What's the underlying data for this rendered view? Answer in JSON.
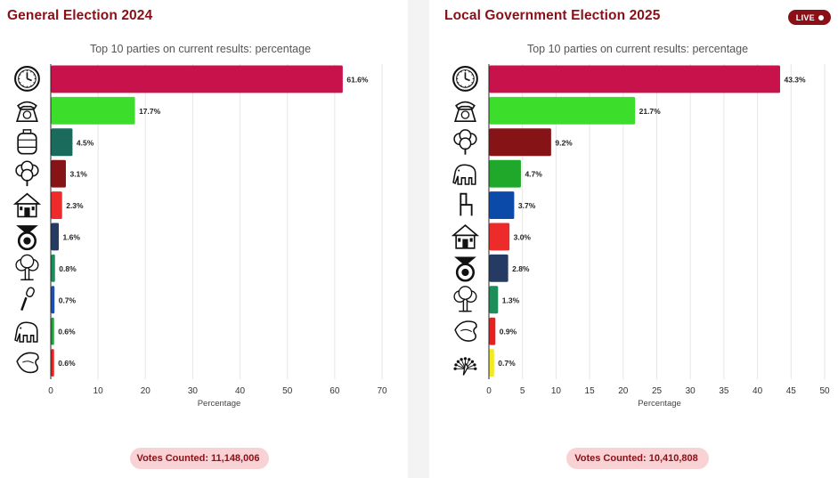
{
  "chart_data": [
    {
      "type": "bar",
      "orientation": "horizontal",
      "title": "General Election 2024",
      "subtitle": "Top 10 parties on current results: percentage",
      "xlabel": "Percentage",
      "xlim": [
        0,
        70
      ],
      "xticks": [
        0,
        10,
        20,
        30,
        40,
        50,
        60,
        70
      ],
      "grid": true,
      "categories": [
        "clock-symbol",
        "telephone-symbol",
        "gas-cylinder-symbol",
        "cotton-plant-symbol",
        "house-symbol",
        "wheel-symbol",
        "tree-symbol",
        "microphone-symbol",
        "elephant-symbol",
        "conch-shell-symbol"
      ],
      "values": [
        61.6,
        17.7,
        4.5,
        3.1,
        2.3,
        1.6,
        0.8,
        0.7,
        0.6,
        0.6
      ],
      "value_labels": [
        "61.6%",
        "17.7%",
        "4.5%",
        "3.1%",
        "2.3%",
        "1.6%",
        "0.8%",
        "0.7%",
        "0.6%",
        "0.6%"
      ],
      "colors": [
        "#c8124b",
        "#3ddd2c",
        "#1a6b5c",
        "#861417",
        "#ee2b2b",
        "#253b63",
        "#1d8d5a",
        "#1f4fb0",
        "#1fa23a",
        "#e52222"
      ]
    },
    {
      "type": "bar",
      "orientation": "horizontal",
      "title": "Local Government Election 2025",
      "subtitle": "Top 10 parties on current results: percentage",
      "xlabel": "Percentage",
      "xlim": [
        0,
        50
      ],
      "xticks": [
        0,
        5,
        10,
        15,
        20,
        25,
        30,
        35,
        40,
        45,
        50
      ],
      "grid": true,
      "categories": [
        "clock-symbol",
        "telephone-symbol",
        "cotton-plant-symbol",
        "elephant-symbol",
        "chair-symbol",
        "house-symbol",
        "wheel-symbol",
        "tree-symbol",
        "conch-shell-symbol",
        "peacock-symbol"
      ],
      "values": [
        43.3,
        21.7,
        9.2,
        4.7,
        3.7,
        3.0,
        2.8,
        1.3,
        0.9,
        0.7
      ],
      "value_labels": [
        "43.3%",
        "21.7%",
        "9.2%",
        "4.7%",
        "3.7%",
        "3.0%",
        "2.8%",
        "1.3%",
        "0.9%",
        "0.7%"
      ],
      "colors": [
        "#c8124b",
        "#3ddd2c",
        "#861417",
        "#1fa82a",
        "#0b4aa8",
        "#ee2b2b",
        "#253b63",
        "#1d8d5a",
        "#e52222",
        "#f2ea1d"
      ]
    }
  ],
  "panels": [
    {
      "title": "General Election 2024",
      "votes_label": "Votes Counted:",
      "votes_value": "11,148,006"
    },
    {
      "title": "Local Government Election 2025",
      "live_label": "LIVE",
      "votes_label": "Votes Counted:",
      "votes_value": "10,410,808"
    }
  ]
}
